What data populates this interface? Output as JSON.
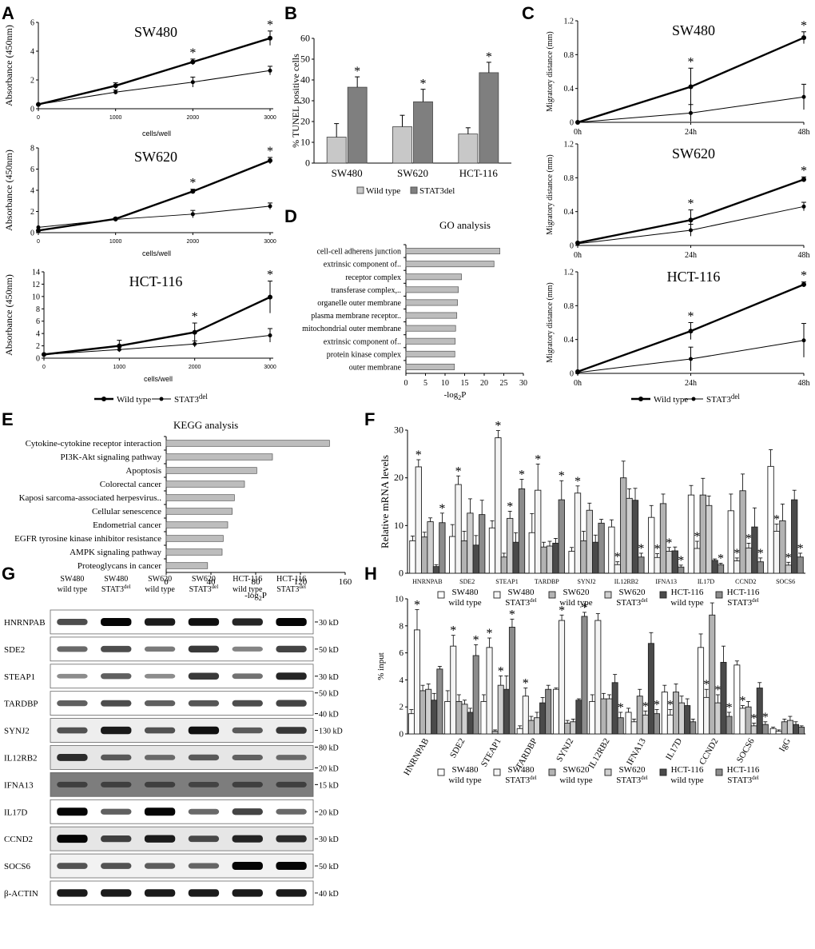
{
  "panels": {
    "A": "A",
    "B": "B",
    "C": "C",
    "D": "D",
    "E": "E",
    "F": "F",
    "G": "G",
    "H": "H"
  },
  "legends": {
    "wt": "Wild type",
    "del": "STAT3",
    "del_sup": "del",
    "ac_wt": "Wild type",
    "ac_del": "STAT3",
    "ac_del_sup": "del",
    "b_wt": "Wild type",
    "b_del": "STAT3del",
    "fh": {
      "sw480": "SW480",
      "sw620": "SW620",
      "hct": "HCT-116",
      "wt": "wild type",
      "del": "STAT3",
      "sup": "del"
    }
  },
  "chart_data": [
    {
      "id": "A1",
      "type": "line",
      "title": "SW480",
      "xlabel": "cells/well",
      "ylabel": "Absorbance (450nm)",
      "x": [
        0,
        1000,
        2000,
        3000
      ],
      "ylim": [
        0,
        6
      ],
      "yticks": [
        0,
        2,
        4,
        6
      ],
      "series": [
        {
          "name": "Wild type",
          "values": [
            0.3,
            1.6,
            3.25,
            4.9
          ],
          "err": [
            0,
            0.2,
            0.2,
            0.5
          ],
          "star": [
            0,
            0,
            1,
            1
          ]
        },
        {
          "name": "STAT3del",
          "values": [
            0.3,
            1.15,
            1.85,
            2.65
          ],
          "err": [
            0,
            0.15,
            0.35,
            0.3
          ]
        }
      ]
    },
    {
      "id": "A2",
      "type": "line",
      "title": "SW620",
      "xlabel": "cells/well",
      "ylabel": "Absorbance (450nm)",
      "x": [
        0,
        1000,
        2000,
        3000
      ],
      "ylim": [
        0,
        8
      ],
      "yticks": [
        0,
        2,
        4,
        6,
        8
      ],
      "series": [
        {
          "name": "Wild type",
          "values": [
            0.2,
            1.3,
            3.9,
            6.8
          ],
          "err": [
            0,
            0.1,
            0.2,
            0.3
          ],
          "star": [
            0,
            0,
            1,
            1
          ]
        },
        {
          "name": "STAT3del",
          "values": [
            0.5,
            1.25,
            1.75,
            2.5
          ],
          "err": [
            0,
            0.1,
            0.35,
            0.3
          ]
        }
      ]
    },
    {
      "id": "A3",
      "type": "line",
      "title": "HCT-116",
      "xlabel": "cells/well",
      "ylabel": "Absorbance (450nm)",
      "x": [
        0,
        1000,
        2000,
        3000
      ],
      "ylim": [
        0,
        14
      ],
      "yticks": [
        0,
        2,
        4,
        6,
        8,
        10,
        12,
        14
      ],
      "series": [
        {
          "name": "Wild type",
          "values": [
            0.6,
            2,
            4.2,
            9.9
          ],
          "err": [
            0,
            0.9,
            1.5,
            2.6
          ],
          "star": [
            0,
            0,
            1,
            1
          ]
        },
        {
          "name": "STAT3del",
          "values": [
            0.6,
            1.4,
            2.3,
            3.7
          ],
          "err": [
            0,
            0.4,
            0.5,
            1.1
          ]
        }
      ]
    },
    {
      "id": "B",
      "type": "bar",
      "ylabel": "% TUNEL positive cells",
      "categories": [
        "SW480",
        "SW620",
        "HCT-116"
      ],
      "ylim": [
        0,
        60
      ],
      "yticks": [
        0,
        10,
        20,
        30,
        40,
        50,
        60
      ],
      "series": [
        {
          "name": "Wild type",
          "values": [
            12.5,
            17.5,
            14
          ],
          "err": [
            6.5,
            5.5,
            3
          ]
        },
        {
          "name": "STAT3del",
          "values": [
            36.5,
            29.5,
            43.5
          ],
          "err": [
            5,
            6,
            5
          ],
          "star": [
            1,
            1,
            1
          ]
        }
      ]
    },
    {
      "id": "C1",
      "type": "line",
      "title": "SW480",
      "ylabel": "Migratory distance (mm)",
      "categories": [
        "0h",
        "24h",
        "48h"
      ],
      "ylim": [
        0,
        1.2
      ],
      "yticks": [
        "0",
        "0.4",
        "0.8",
        "1.2"
      ],
      "series": [
        {
          "name": "Wild type",
          "values": [
            0,
            0.42,
            1
          ],
          "err": [
            0,
            0.22,
            0.07
          ],
          "star": [
            0,
            1,
            1
          ]
        },
        {
          "name": "STAT3del",
          "values": [
            0,
            0.11,
            0.3
          ],
          "err": [
            0,
            0.1,
            0.15
          ]
        }
      ]
    },
    {
      "id": "C2",
      "type": "line",
      "title": "SW620",
      "ylabel": "Migratory distance (mm)",
      "categories": [
        "0h",
        "24h",
        "48h"
      ],
      "ylim": [
        0,
        1.2
      ],
      "yticks": [
        "0",
        "0.4",
        "0.8",
        "1.2"
      ],
      "series": [
        {
          "name": "Wild type",
          "values": [
            0.03,
            0.3,
            0.78
          ],
          "err": [
            0,
            0.12,
            0.03
          ],
          "star": [
            0,
            1,
            1
          ]
        },
        {
          "name": "STAT3del",
          "values": [
            0.02,
            0.18,
            0.46
          ],
          "err": [
            0,
            0.07,
            0.05
          ]
        }
      ]
    },
    {
      "id": "C3",
      "type": "line",
      "title": "HCT-116",
      "ylabel": "Migratory distance (mm)",
      "categories": [
        "0h",
        "24h",
        "48h"
      ],
      "ylim": [
        0,
        1.2
      ],
      "yticks": [
        "0",
        "0.4",
        "0.8",
        "1.2"
      ],
      "series": [
        {
          "name": "Wild type",
          "values": [
            0.02,
            0.5,
            1.05
          ],
          "err": [
            0,
            0.1,
            0.03
          ],
          "star": [
            0,
            1,
            1
          ]
        },
        {
          "name": "STAT3del",
          "values": [
            0.01,
            0.17,
            0.39
          ],
          "err": [
            0,
            0.14,
            0.2
          ]
        }
      ]
    },
    {
      "id": "D",
      "type": "bar",
      "orientation": "horizontal",
      "title": "GO analysis",
      "xlabel": "-log",
      "xlabel_sub": "2",
      "xlabel_end": "P",
      "xlim": [
        0,
        30
      ],
      "xticks": [
        0,
        5,
        10,
        15,
        20,
        25,
        30
      ],
      "categories": [
        "cell-cell adherens junction",
        "extrinsic component of..",
        "receptor complex",
        "transferase complex,..",
        "organelle outer membrane",
        "plasma membrane receptor..",
        "mitochondrial outer membrane",
        "extrinsic component of..",
        "protein kinase complex",
        "outer membrane"
      ],
      "values": [
        24,
        22.5,
        14.2,
        13.4,
        13.2,
        13,
        12.7,
        12.6,
        12.5,
        12.4
      ]
    },
    {
      "id": "E",
      "type": "bar",
      "orientation": "horizontal",
      "title": "KEGG analysis",
      "xlabel": "-log",
      "xlabel_sub": "2",
      "xlabel_end": "P",
      "xlim": [
        0,
        160
      ],
      "xticks": [
        0,
        40,
        80,
        120,
        160
      ],
      "categories": [
        "Cytokine-cytokine receptor interaction",
        "PI3K-Akt signaling pathway",
        "Apoptosis",
        "Colorectal cancer",
        "Kaposi sarcoma-associated herpesvirus..",
        "Cellular senescence",
        "Endometrial cancer",
        "EGFR tyrosine kinase inhibitor resistance",
        "AMPK signaling pathway",
        "Proteoglycans in cancer"
      ],
      "values": [
        146,
        95,
        81,
        70,
        61,
        59,
        55,
        51,
        50,
        37
      ]
    },
    {
      "id": "F",
      "type": "bar",
      "ylabel": "Relative mRNA levels",
      "ylim": [
        0,
        30
      ],
      "yticks": [
        0,
        10,
        20,
        30
      ],
      "categories": [
        "HNRNPAB",
        "SDE2",
        "STEAP1",
        "TARDBP",
        "SYNJ2",
        "IL12RB2",
        "IFNA13",
        "IL17D",
        "CCND2",
        "SOCS6"
      ],
      "series": [
        {
          "name": "SW480 wild type",
          "values": [
            6.8,
            7.7,
            9.5,
            8.5,
            4.6,
            9.7,
            11.7,
            16.4,
            13.1,
            22.4
          ],
          "err": [
            1,
            2.5,
            1.5,
            4,
            0.8,
            1.5,
            2.5,
            2,
            3.5,
            3.5
          ]
        },
        {
          "name": "SW480 STAT3del",
          "values": [
            22.3,
            18.6,
            28.4,
            17.4,
            16.8,
            1.8,
            3.3,
            5.2,
            2.6,
            8.8
          ],
          "err": [
            1.5,
            1.8,
            1.5,
            5.5,
            1.5,
            0.6,
            0.8,
            1.5,
            0.6,
            1.5
          ],
          "star": [
            1,
            1,
            1,
            1,
            1,
            1,
            1,
            1,
            1,
            1
          ]
        },
        {
          "name": "SW620 wild type",
          "values": [
            7.6,
            6.8,
            3.4,
            5.5,
            6.8,
            20,
            14.6,
            16.4,
            17.3,
            11
          ],
          "err": [
            1,
            2,
            0.8,
            1,
            2,
            3.5,
            2,
            3.5,
            3.5,
            3.5
          ]
        },
        {
          "name": "SW620 STAT3del",
          "values": [
            10.8,
            12.6,
            11.5,
            5.7,
            13.2,
            15.7,
            4.6,
            14.2,
            5.3,
            1.7
          ],
          "err": [
            0.8,
            3,
            1.5,
            1,
            1.5,
            2,
            0.8,
            2,
            1,
            0.6
          ],
          "star": [
            0,
            0,
            1,
            0,
            0,
            0,
            1,
            0,
            1,
            1
          ]
        },
        {
          "name": "HCT-116 wild type",
          "values": [
            1.4,
            5.9,
            6.5,
            6.3,
            6.5,
            15.3,
            4.7,
            2.7,
            9.7,
            15.4
          ],
          "err": [
            0.4,
            2,
            2,
            1,
            1.5,
            2.5,
            0.8,
            0.3,
            4,
            2
          ]
        },
        {
          "name": "HCT-116 STAT3del",
          "values": [
            10.6,
            12.3,
            17.7,
            15.4,
            10.5,
            3.4,
            1.3,
            1.8,
            2.4,
            3.4
          ],
          "err": [
            2,
            3,
            2,
            4,
            0.8,
            0.8,
            0.4,
            0.3,
            0.8,
            0.8
          ],
          "star": [
            1,
            0,
            1,
            1,
            0,
            1,
            1,
            1,
            1,
            1
          ]
        }
      ]
    },
    {
      "id": "H",
      "type": "bar",
      "ylabel": "% input",
      "ylim": [
        0,
        10
      ],
      "yticks": [
        0,
        2,
        4,
        6,
        8,
        10
      ],
      "categories": [
        "HNRNPAB",
        "SDE2",
        "STEAP1",
        "TARDBP",
        "SYNJ2",
        "IL12RB2",
        "IFNA13",
        "IL17D",
        "CCND2",
        "SOCS6",
        "IgG"
      ],
      "series": [
        {
          "name": "SW480 wild type",
          "values": [
            1.5,
            2.4,
            2.4,
            0.4,
            3.3,
            2.4,
            1.6,
            3.1,
            6.4,
            5.1,
            0.4
          ],
          "err": [
            0.3,
            0.8,
            0.5,
            0.2,
            0.1,
            0.5,
            0.3,
            0.5,
            1,
            0.3,
            0.1
          ]
        },
        {
          "name": "SW480 STAT3del",
          "values": [
            7.7,
            6.5,
            6.4,
            2.8,
            8.4,
            8.4,
            0.9,
            1.4,
            2.7,
            1.9,
            0.2
          ],
          "err": [
            1.5,
            0.8,
            0.7,
            0.6,
            0.4,
            0.5,
            0.2,
            0.4,
            0.6,
            0.2,
            0.1
          ],
          "star": [
            1,
            1,
            1,
            1,
            1,
            0,
            0,
            1,
            1,
            1,
            0
          ]
        },
        {
          "name": "SW620 wild type",
          "values": [
            3.2,
            2.4,
            0.2,
            1,
            0.8,
            2.6,
            2.8,
            3.1,
            8.8,
            2,
            0.9
          ],
          "err": [
            0.4,
            0.5,
            0.1,
            0.3,
            0.2,
            0.4,
            0.5,
            0.6,
            0.9,
            0.4,
            0.2
          ]
        },
        {
          "name": "SW620 STAT3del",
          "values": [
            3.3,
            2.2,
            3.6,
            1.2,
            0.9,
            2.6,
            1.4,
            2.3,
            2.3,
            0.6,
            1
          ],
          "err": [
            0.4,
            0.3,
            0.7,
            0.4,
            0.2,
            0.3,
            0.3,
            0.5,
            0.6,
            0.2,
            0.3
          ],
          "star": [
            0,
            0,
            1,
            0,
            0,
            0,
            1,
            0,
            1,
            1,
            0
          ]
        },
        {
          "name": "HCT-116 wild type",
          "values": [
            2.5,
            1.6,
            3.3,
            2.3,
            2.5,
            3.8,
            6.7,
            2.1,
            5.3,
            3.4,
            0.7
          ],
          "err": [
            0.5,
            0.3,
            1,
            0.4,
            0.1,
            0.6,
            0.8,
            0.5,
            1.2,
            0.4,
            0.2
          ]
        },
        {
          "name": "HCT-116 STAT3del",
          "values": [
            4.8,
            5.8,
            7.9,
            3.3,
            8.7,
            1.2,
            1.5,
            0.9,
            1.3,
            0.7,
            0.5
          ],
          "err": [
            0.2,
            0.8,
            0.6,
            0.3,
            0.3,
            0.4,
            0.3,
            0.2,
            0.3,
            0.2,
            0.1
          ],
          "star": [
            0,
            1,
            1,
            0,
            1,
            1,
            1,
            0,
            1,
            1,
            0
          ]
        }
      ]
    }
  ],
  "blot": {
    "columns": [
      {
        "line1": "SW480",
        "line2": "wild type",
        "del": false
      },
      {
        "line1": "SW480",
        "line2": "STAT3",
        "del": true
      },
      {
        "line1": "SW620",
        "line2": "wild type",
        "del": false
      },
      {
        "line1": "SW620",
        "line2": "STAT3",
        "del": true
      },
      {
        "line1": "HCT-116",
        "line2": "wild type",
        "del": false
      },
      {
        "line1": "HCT-116",
        "line2": "STAT3",
        "del": true
      }
    ],
    "rows": [
      {
        "label": "HNRNPAB",
        "markers": [
          "30 kD"
        ],
        "bg": "#ffffff",
        "int": [
          0.65,
          1,
          0.9,
          0.95,
          0.85,
          1
        ]
      },
      {
        "label": "SDE2",
        "markers": [
          "50 kD"
        ],
        "bg": "#ffffff",
        "int": [
          0.5,
          0.65,
          0.4,
          0.75,
          0.35,
          0.7
        ]
      },
      {
        "label": "STEAP1",
        "markers": [
          "30 kD"
        ],
        "bg": "#ffffff",
        "int": [
          0.3,
          0.55,
          0.3,
          0.75,
          0.45,
          0.85
        ]
      },
      {
        "label": "TARDBP",
        "markers": [
          "50 kD",
          "40 kD"
        ],
        "bg": "#ffffff",
        "int": [
          0.55,
          0.65,
          0.55,
          0.6,
          0.65,
          0.7
        ]
      },
      {
        "label": "SYNJ2",
        "markers": [
          "130 kD"
        ],
        "bg": "#eeeeee",
        "int": [
          0.6,
          0.9,
          0.6,
          0.95,
          0.55,
          0.75
        ]
      },
      {
        "label": "IL12RB2",
        "markers": [
          "80 kD",
          "20 kD"
        ],
        "bg": "#e6e6e6",
        "int": [
          0.8,
          0.55,
          0.45,
          0.55,
          0.5,
          0.45
        ]
      },
      {
        "label": "IFNA13",
        "markers": [
          "15 kD"
        ],
        "bg": "#7d7d7d",
        "int": [
          0.5,
          0.5,
          0.5,
          0.45,
          0.5,
          0.5
        ]
      },
      {
        "label": "IL17D",
        "markers": [
          "20 kD"
        ],
        "bg": "#ffffff",
        "int": [
          1,
          0.55,
          1,
          0.5,
          0.7,
          0.5
        ]
      },
      {
        "label": "CCND2",
        "markers": [
          "30 kD"
        ],
        "bg": "#e6e6e6",
        "int": [
          1,
          0.7,
          0.9,
          0.65,
          0.85,
          0.8
        ]
      },
      {
        "label": "SOCS6",
        "markers": [
          "50 kD"
        ],
        "bg": "#f2f2f2",
        "int": [
          0.6,
          0.6,
          0.55,
          0.5,
          1,
          1
        ]
      },
      {
        "label": "β-ACTIN",
        "markers": [
          "40 kD"
        ],
        "bg": "#ffffff",
        "int": [
          0.9,
          0.9,
          0.9,
          0.9,
          0.9,
          0.9
        ]
      }
    ]
  },
  "colors": {
    "wt": "#c8c8c8",
    "del": "#7f7f7f",
    "f1": "#ffffff",
    "f2": "#f4f4f4",
    "f3": "#b3b3b3",
    "f4": "#cfcfcf",
    "f5": "#4a4a4a",
    "f6": "#8c8c8c",
    "go": "#bdbdbd"
  }
}
